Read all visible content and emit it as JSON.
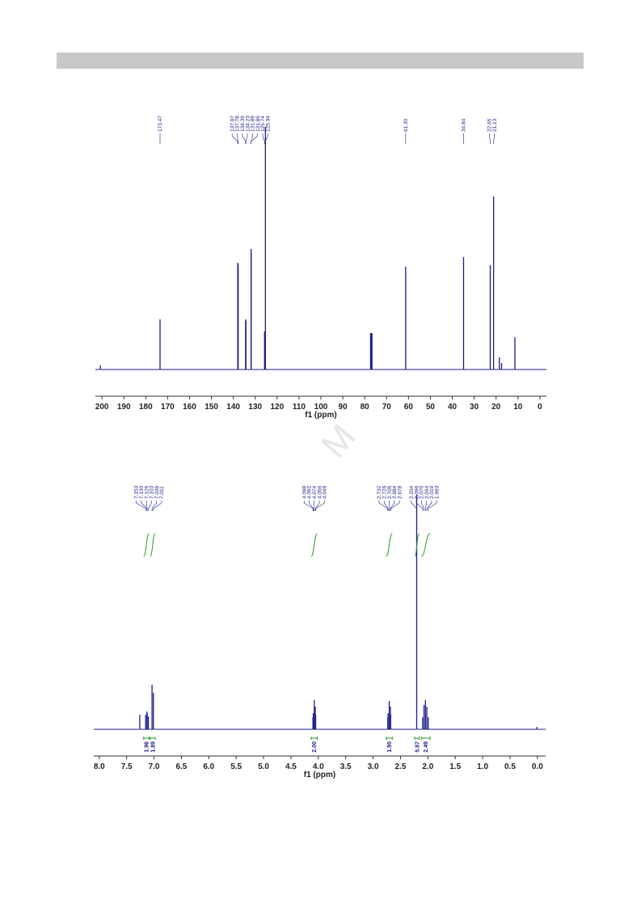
{
  "watermark": "M",
  "chart_data": [
    {
      "type": "spectrum",
      "color": "#1c1c8a",
      "x_label": "f1 (ppm)",
      "xlim": [
        203,
        -3
      ],
      "ylim": [
        0,
        310
      ],
      "xticks": [
        200,
        190,
        180,
        170,
        160,
        150,
        140,
        130,
        120,
        110,
        100,
        90,
        80,
        70,
        60,
        50,
        40,
        30,
        20,
        10,
        0
      ],
      "x": [
        200.7,
        173.47,
        137.97,
        137.78,
        134.39,
        134.23,
        131.89,
        131.86,
        125.74,
        125.34,
        77.32,
        77.0,
        76.68,
        61.3,
        34.84,
        22.65,
        21.13,
        18.5,
        17.5,
        11.4
      ],
      "values": [
        5,
        62,
        132,
        130,
        62,
        60,
        149,
        145,
        47,
        300,
        45,
        45,
        45,
        127,
        139,
        129,
        214,
        15,
        8,
        40
      ],
      "peak_labels": [
        173.47,
        137.97,
        137.78,
        134.39,
        134.23,
        131.89,
        131.86,
        125.74,
        125.34,
        {
          "value": 61.3,
          "label": "61.30"
        },
        34.84,
        22.65,
        21.13
      ]
    },
    {
      "type": "spectrum",
      "color": "#1c1c8a",
      "x_label": "f1 (ppm)",
      "xlim": [
        8.1,
        -0.15
      ],
      "ylim": [
        0,
        300
      ],
      "xticks": [
        {
          "value": 8,
          "label": "8.0"
        },
        7.5,
        {
          "value": 7,
          "label": "7.0"
        },
        6.5,
        {
          "value": 6,
          "label": "6.0"
        },
        5.5,
        {
          "value": 5,
          "label": "5.0"
        },
        4.5,
        {
          "value": 4,
          "label": "4.0"
        },
        3.5,
        {
          "value": 3,
          "label": "3.0"
        },
        2.5,
        {
          "value": 2,
          "label": "2.0"
        },
        1.5,
        {
          "value": 1,
          "label": "1.0"
        },
        0.5,
        {
          "value": 0,
          "label": "0.0"
        }
      ],
      "x": [
        7.26,
        7.153,
        7.13,
        7.125,
        7.103,
        7.036,
        7.011,
        4.098,
        4.092,
        4.074,
        4.056,
        4.049,
        2.732,
        2.726,
        2.705,
        2.684,
        2.678,
        2.204,
        2.096,
        2.07,
        2.044,
        2.019,
        1.993,
        0.01
      ],
      "values": [
        18,
        18,
        22,
        20,
        16,
        55,
        45,
        15,
        20,
        36,
        28,
        18,
        15,
        20,
        35,
        28,
        18,
        290,
        15,
        30,
        36,
        28,
        15,
        3
      ],
      "peak_labels": [
        7.153,
        {
          "value": 7.13,
          "label": "7.130"
        },
        7.125,
        7.103,
        7.036,
        7.011,
        4.098,
        4.092,
        4.074,
        4.056,
        4.049,
        2.732,
        2.726,
        2.705,
        2.684,
        2.678,
        2.204,
        2.096,
        {
          "value": 2.07,
          "label": "2.070"
        },
        2.044,
        2.019,
        1.993
      ],
      "integral_color": "#2e9a2e",
      "integrals": {
        "ranges": [
          [
            7.19,
            7.09
          ],
          [
            7.07,
            6.98
          ],
          [
            4.13,
            4.02
          ],
          [
            2.76,
            2.65
          ],
          [
            2.24,
            2.16
          ],
          [
            2.12,
            1.96
          ]
        ],
        "values": [
          1.96,
          1.89,
          {
            "value": 2,
            "label": "2.00"
          },
          1.95,
          5.87,
          2.49
        ]
      }
    }
  ]
}
